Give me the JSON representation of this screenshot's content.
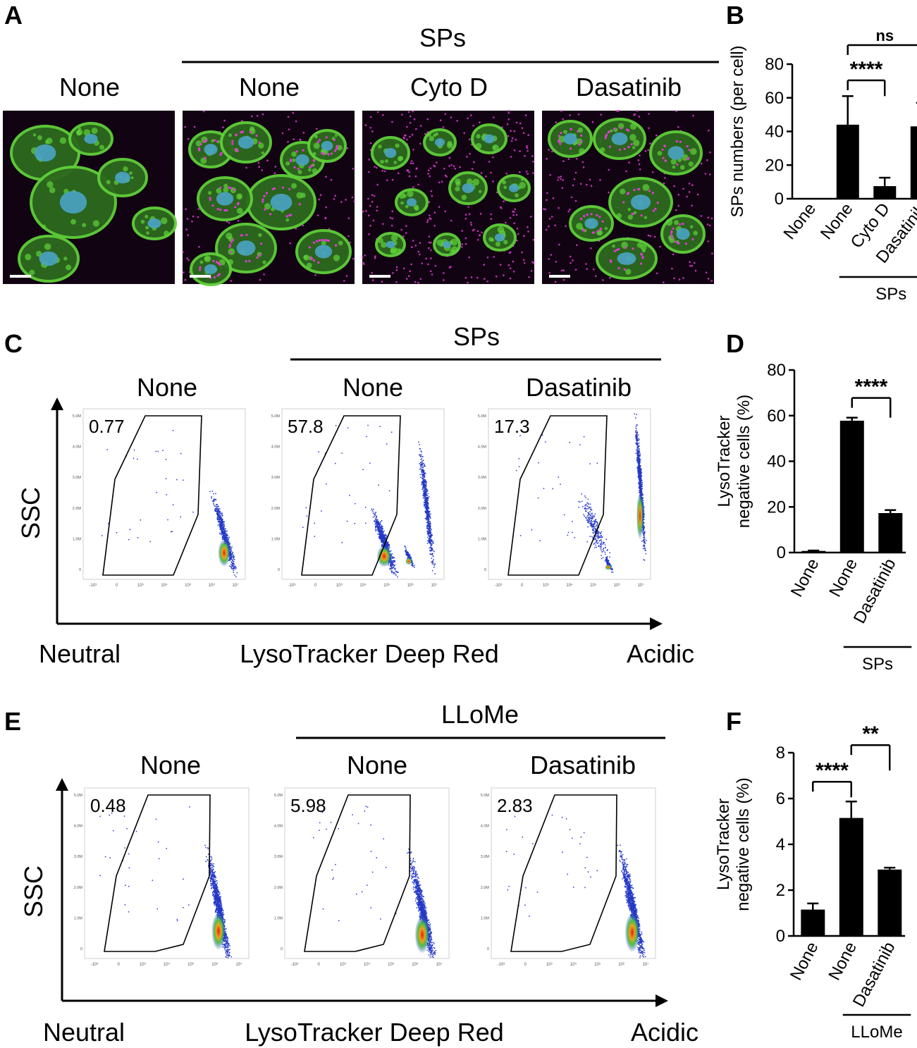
{
  "panels": {
    "A": {
      "letter": "A",
      "group_label": "SPs",
      "columns": [
        "None",
        "None",
        "Cyto D",
        "Dasatinib"
      ],
      "image_semantics": [
        "cells-untreated",
        "cells-with-particles",
        "cells-cyto-d",
        "cells-dasatinib"
      ],
      "channel_colors": {
        "actin": "#5fd03a",
        "nucleus": "#4aa3c4",
        "particles": "#e23ad6",
        "background": "#120312"
      }
    },
    "C": {
      "letter": "C",
      "group_label": "SPs",
      "columns": [
        "None",
        "None",
        "Dasatinib"
      ],
      "gate_values": [
        "0.77",
        "57.8",
        "17.3"
      ],
      "y_axis_label": "SSC",
      "x_axis_left": "Neutral",
      "x_axis_center": "LysoTracker Deep Red",
      "x_axis_right": "Acidic"
    },
    "E": {
      "letter": "E",
      "group_label": "LLoMe",
      "columns": [
        "None",
        "None",
        "Dasatinib"
      ],
      "gate_values": [
        "0.48",
        "5.98",
        "2.83"
      ],
      "y_axis_label": "SSC",
      "x_axis_left": "Neutral",
      "x_axis_center": "LysoTracker Deep Red",
      "x_axis_right": "Acidic"
    }
  },
  "chart_data": [
    {
      "id": "B",
      "letter": "B",
      "type": "bar",
      "categories": [
        "None",
        "None",
        "Cyto D",
        "Dasatinib"
      ],
      "values": [
        0,
        44,
        7.5,
        43
      ],
      "errors": [
        0,
        17,
        5,
        14
      ],
      "ylabel": "SPs numbers (per cell)",
      "ylim": [
        0,
        80
      ],
      "yticks": [
        "0",
        "20",
        "40",
        "60",
        "80"
      ],
      "group_label": "SPs",
      "group_span": [
        1,
        3
      ],
      "significance": [
        {
          "from": 1,
          "to": 2,
          "label": "****"
        },
        {
          "from": 1,
          "to": 3,
          "label": "ns"
        }
      ],
      "bar_color": "#000000"
    },
    {
      "id": "D",
      "letter": "D",
      "type": "bar",
      "categories": [
        "None",
        "None",
        "Dasatinib"
      ],
      "values": [
        0.7,
        57.8,
        17.3
      ],
      "errors": [
        0.2,
        1.3,
        1.3
      ],
      "ylabel": [
        "LysoTracker",
        "negative cells (%)"
      ],
      "ylim": [
        0,
        80
      ],
      "yticks": [
        "0",
        "20",
        "40",
        "60",
        "80"
      ],
      "group_label": "SPs",
      "group_span": [
        1,
        2
      ],
      "significance": [
        {
          "from": 1,
          "to": 2,
          "label": "****"
        }
      ],
      "bar_color": "#000000"
    },
    {
      "id": "F",
      "letter": "F",
      "type": "bar",
      "categories": [
        "None",
        "None",
        "Dasatinib"
      ],
      "values": [
        1.15,
        5.15,
        2.9
      ],
      "errors": [
        0.27,
        0.72,
        0.08
      ],
      "ylabel": [
        "LysoTracker",
        "negative cells (%)"
      ],
      "ylim": [
        0,
        8
      ],
      "yticks": [
        "0",
        "2",
        "4",
        "6",
        "8"
      ],
      "group_label": "LLoMe",
      "group_span": [
        1,
        2
      ],
      "significance": [
        {
          "from": 0,
          "to": 1,
          "label": "****"
        },
        {
          "from": 1,
          "to": 2,
          "label": "**"
        }
      ],
      "bar_color": "#000000"
    }
  ]
}
